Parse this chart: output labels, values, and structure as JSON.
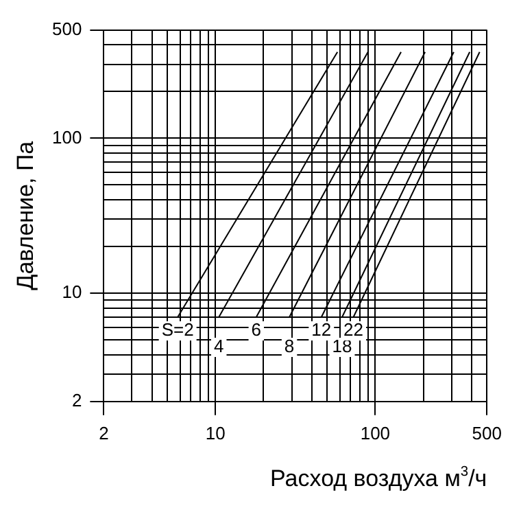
{
  "chart_data": {
    "type": "line",
    "xlabel": "Расход воздуха м$^{3}$/ч",
    "ylabel": "Давление, Па",
    "log": "xy",
    "xlim": [
      2,
      500
    ],
    "ylim": [
      2,
      500
    ],
    "xticks": [
      2,
      {
        "value": 3,
        "label": null
      },
      {
        "value": 4,
        "label": null
      },
      {
        "value": 5,
        "label": null
      },
      {
        "value": 6,
        "label": null
      },
      {
        "value": 7,
        "label": null
      },
      {
        "value": 8,
        "label": null
      },
      {
        "value": 9,
        "label": null
      },
      10,
      {
        "value": 20,
        "label": null
      },
      {
        "value": 30,
        "label": null
      },
      {
        "value": 40,
        "label": null
      },
      {
        "value": 50,
        "label": null
      },
      {
        "value": 60,
        "label": null
      },
      {
        "value": 70,
        "label": null
      },
      {
        "value": 80,
        "label": null
      },
      {
        "value": 90,
        "label": null
      },
      100,
      {
        "value": 200,
        "label": null
      },
      {
        "value": 300,
        "label": null
      },
      {
        "value": 400,
        "label": null
      },
      500
    ],
    "yticks": [
      2,
      {
        "value": 3,
        "label": null
      },
      {
        "value": 4,
        "label": null
      },
      {
        "value": 5,
        "label": null
      },
      {
        "value": 6,
        "label": null
      },
      {
        "value": 7,
        "label": null
      },
      {
        "value": 8,
        "label": null
      },
      {
        "value": 9,
        "label": null
      },
      10,
      {
        "value": 20,
        "label": null
      },
      {
        "value": 30,
        "label": null
      },
      {
        "value": 40,
        "label": null
      },
      {
        "value": 50,
        "label": null
      },
      {
        "value": 60,
        "label": null
      },
      {
        "value": 70,
        "label": null
      },
      {
        "value": 80,
        "label": null
      },
      {
        "value": 90,
        "label": null
      },
      100,
      {
        "value": 200,
        "label": null
      },
      {
        "value": 300,
        "label": null
      },
      {
        "value": 400,
        "label": null
      },
      500
    ],
    "grid": true,
    "legend": false,
    "marker": "none",
    "line_style": "solid",
    "series": [
      {
        "name": "S=2",
        "color": "#000000",
        "x": [
          5.8,
          58
        ],
        "values": [
          7,
          360
        ]
      },
      {
        "name": "4",
        "color": "#000000",
        "x": [
          10.5,
          90
        ],
        "values": [
          7,
          360
        ]
      },
      {
        "name": "6",
        "color": "#000000",
        "x": [
          18,
          145
        ],
        "values": [
          7,
          360
        ]
      },
      {
        "name": "8",
        "color": "#000000",
        "x": [
          29,
          205
        ],
        "values": [
          7,
          360
        ]
      },
      {
        "name": "12",
        "color": "#000000",
        "x": [
          46,
          310
        ],
        "values": [
          7,
          360
        ]
      },
      {
        "name": "18",
        "color": "#000000",
        "x": [
          62,
          390
        ],
        "values": [
          7,
          360
        ]
      },
      {
        "name": "22",
        "color": "#000000",
        "x": [
          73,
          450
        ],
        "values": [
          7,
          360
        ]
      }
    ]
  }
}
